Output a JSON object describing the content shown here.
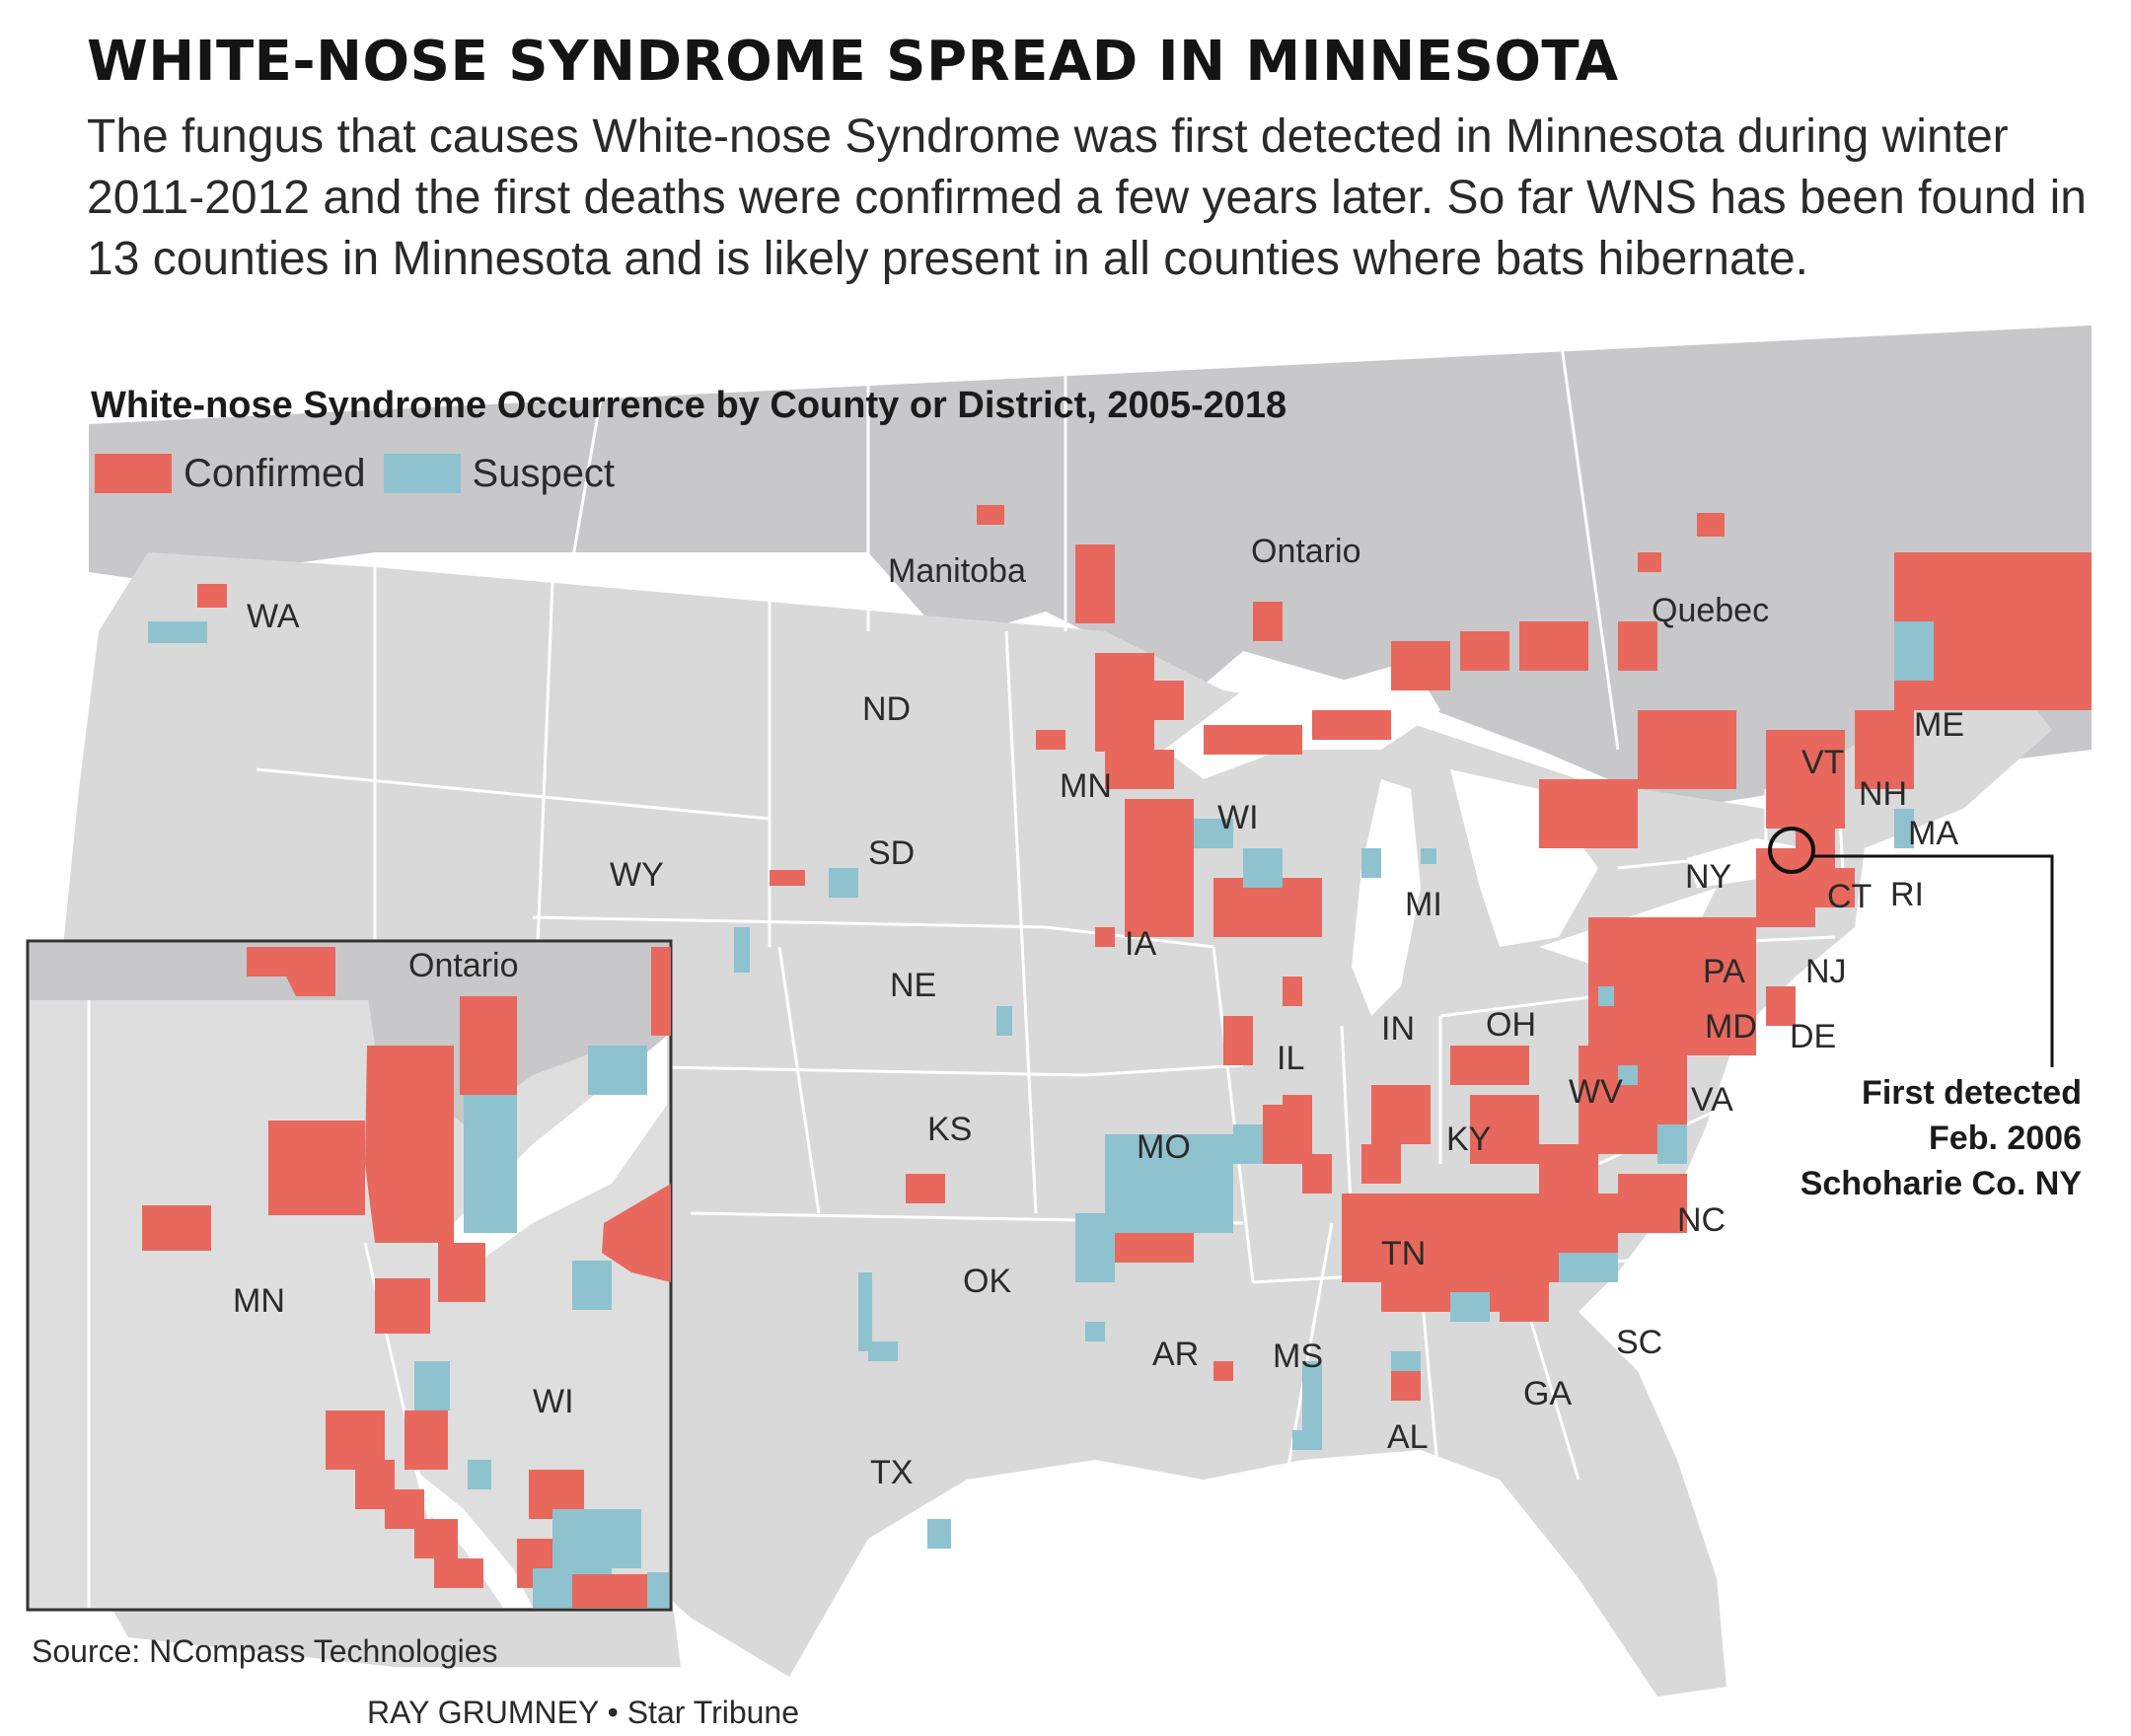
{
  "headline": "WHITE-NOSE SYNDROME SPREAD IN MINNESOTA",
  "intro": "The fungus that causes White-nose Syndrome was first detected in Minnesota during winter 2011-2012 and the first deaths were confirmed a few years later. So far WNS has been found in 13 counties in Minnesota and is likely present in all counties where bats hibernate.",
  "map_title": "White-nose Syndrome Occurrence by County or District, 2005-2018",
  "legend": {
    "confirmed": {
      "label": "Confirmed",
      "color": "#e8685d"
    },
    "suspect": {
      "label": "Suspect",
      "color": "#8fc2cf"
    }
  },
  "colors": {
    "land": "#d9d9da",
    "canada": "#c8c8ca",
    "water": "#ffffff",
    "border": "#ffffff"
  },
  "labels": {
    "states": [
      "WA",
      "ND",
      "SD",
      "WY",
      "NE",
      "KS",
      "OK",
      "TX",
      "MN",
      "WI",
      "IA",
      "MO",
      "AR",
      "MS",
      "AL",
      "IL",
      "IN",
      "MI",
      "OH",
      "KY",
      "TN",
      "GA",
      "SC",
      "NC",
      "VA",
      "WV",
      "MD",
      "DE",
      "PA",
      "NJ",
      "NY",
      "CT",
      "RI",
      "MA",
      "NH",
      "VT",
      "ME"
    ],
    "provinces": [
      "Manitoba",
      "Ontario",
      "Quebec"
    ]
  },
  "inset": {
    "labels": [
      "Ontario",
      "MN",
      "WI"
    ]
  },
  "callout": {
    "line1": "First detected",
    "line2": "Feb. 2006",
    "line3": "Schoharie Co. NY"
  },
  "source": "Source: NCompass Technologies",
  "credit": "RAY GRUMNEY • Star Tribune"
}
